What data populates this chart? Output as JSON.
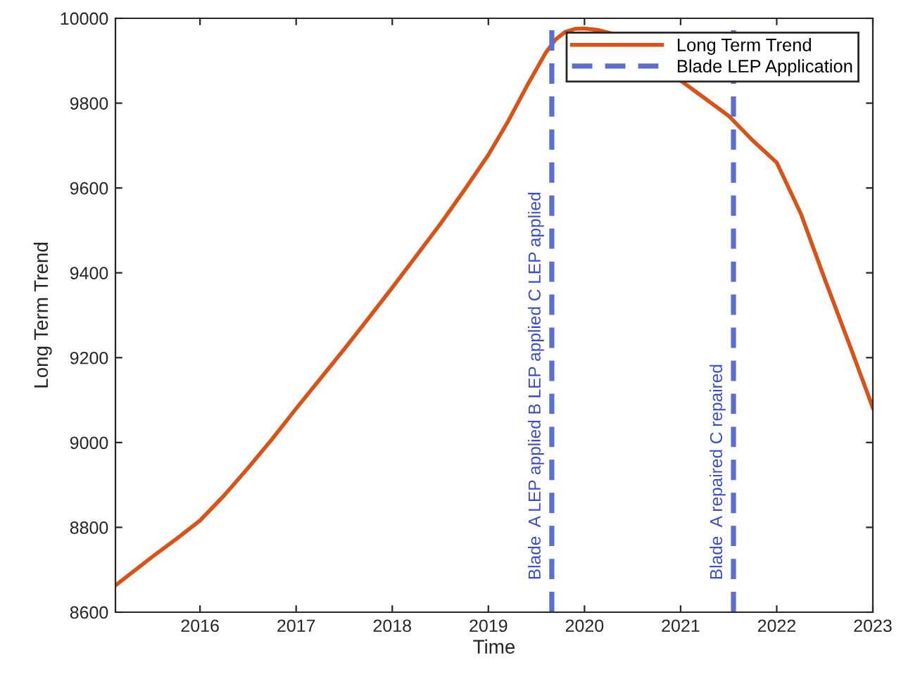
{
  "chart_data": {
    "type": "line",
    "xlabel": "Time",
    "ylabel": "Long Term Trend",
    "xlim": [
      2015.12,
      2023
    ],
    "xticks": [
      2016,
      2017,
      2018,
      2019,
      2020,
      2021,
      2022,
      2023
    ],
    "ylim": [
      8600,
      10000
    ],
    "yticks": [
      8600,
      8800,
      9000,
      9200,
      9400,
      9600,
      9800,
      10000
    ],
    "grid": false,
    "legend": "top right",
    "series": [
      {
        "name": "Long Term Trend",
        "color": "#d95319",
        "line_style": "solid",
        "x": [
          2015.12,
          2015.5,
          2015.75,
          2016,
          2016.25,
          2016.5,
          2016.75,
          2017,
          2017.25,
          2017.5,
          2017.75,
          2018,
          2018.25,
          2018.5,
          2018.75,
          2019,
          2019.2,
          2019.4,
          2019.6,
          2019.7,
          2019.8,
          2019.9,
          2020,
          2020.15,
          2020.3,
          2020.45,
          2021.5,
          2021.75,
          2022,
          2022.25,
          2022.5,
          2022.75,
          2023
        ],
        "values": [
          8663,
          8730,
          8772,
          8816,
          8875,
          8940,
          9008,
          9080,
          9150,
          9220,
          9292,
          9365,
          9440,
          9515,
          9595,
          9678,
          9755,
          9840,
          9920,
          9950,
          9968,
          9975,
          9976,
          9972,
          9963,
          9945,
          9770,
          9712,
          9660,
          9540,
          9385,
          9235,
          9082
        ]
      },
      {
        "name": "Blade LEP Application",
        "color": "#5b6fd0",
        "line_style": "dashed",
        "x": [
          2019.66,
          2019.66
        ],
        "values": [
          8600,
          10000
        ]
      },
      {
        "color": "#5b6fd0",
        "line_style": "dashed",
        "x": [
          2021.55,
          2021.55
        ],
        "values": [
          8600,
          10000
        ]
      }
    ],
    "annotations": [
      {
        "text": "Blade  A LEP applied B LEP applied C LEP applied",
        "x": 2019.66,
        "y": 8676
      },
      {
        "text": "Blade  A repaired C repaired",
        "x": 2021.55,
        "y": 8676
      }
    ]
  }
}
